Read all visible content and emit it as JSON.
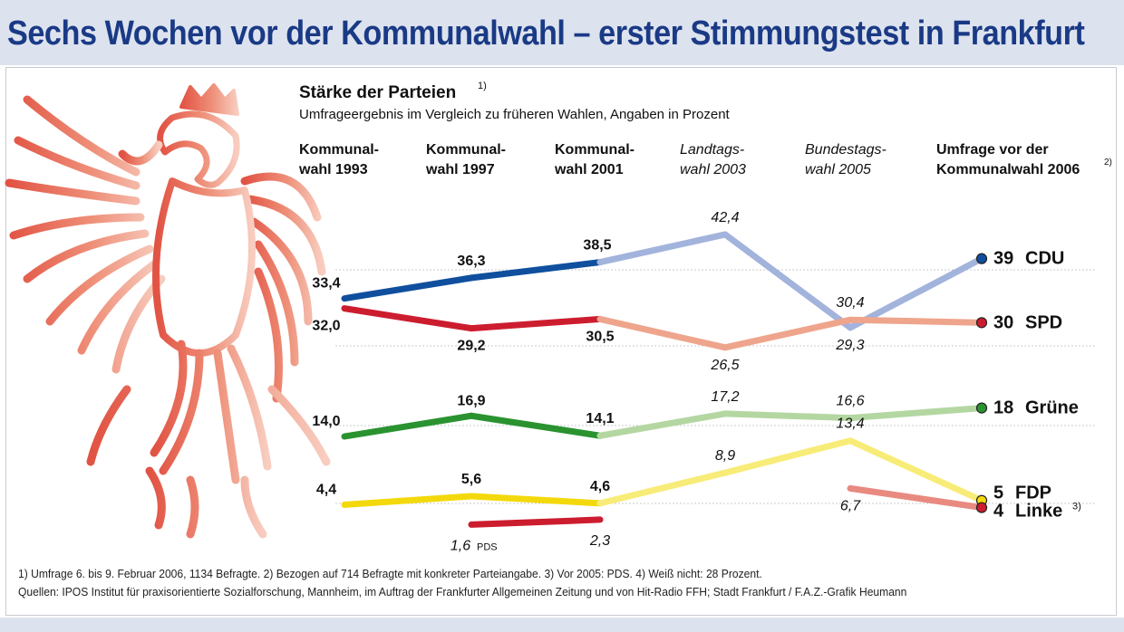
{
  "headline": "Sechs Wochen vor der Kommunalwahl – erster Stimmungstest in Frankfurt",
  "colors": {
    "cdu": "#0f4f9e",
    "cdu_light": "#a2b3dc",
    "spd": "#cc1d2f",
    "spd_light": "#eea58c",
    "gruene": "#2a9330",
    "gruene_light": "#b4d7a2",
    "fdp": "#f3d90c",
    "fdp_light": "#f8ec78",
    "linke_light": "#e88a80",
    "eagle": "#e8735a"
  },
  "chart_data": {
    "type": "line",
    "title": "Stärke der Parteien",
    "title_note": "1)",
    "subtitle": "Umfrageergebnis im Vergleich zu früheren Wahlen, Angaben in Prozent",
    "categories": [
      {
        "line1": "Kommunal-",
        "line2": "wahl 1993",
        "note": "",
        "style": "bold"
      },
      {
        "line1": "Kommunal-",
        "line2": "wahl 1997",
        "note": "",
        "style": "bold"
      },
      {
        "line1": "Kommunal-",
        "line2": "wahl 2001",
        "note": "",
        "style": "bold"
      },
      {
        "line1": "Landtags-",
        "line2": "wahl 2003",
        "note": "",
        "style": "italic"
      },
      {
        "line1": "Bundestags-",
        "line2": "wahl 2005",
        "note": "",
        "style": "italic"
      },
      {
        "line1": "Umfrage vor der",
        "line2": "Kommunalwahl 2006",
        "note": "2)",
        "style": "bold"
      }
    ],
    "series": [
      {
        "key": "cdu",
        "values": [
          33.4,
          36.3,
          38.5,
          42.4,
          29.3,
          39
        ],
        "labels": [
          "33,4",
          "36,3",
          "38,5",
          "42,4",
          "29,3",
          "39"
        ],
        "party": "CDU",
        "party_note": ""
      },
      {
        "key": "spd",
        "values": [
          32.0,
          29.2,
          30.5,
          26.5,
          30.4,
          30
        ],
        "labels": [
          "32,0",
          "29,2",
          "30,5",
          "26,5",
          "30,4",
          "30"
        ],
        "party": "SPD",
        "party_note": ""
      },
      {
        "key": "gruene",
        "values": [
          14.0,
          16.9,
          14.1,
          17.2,
          16.6,
          18
        ],
        "labels": [
          "14,0",
          "16,9",
          "14,1",
          "17,2",
          "16,6",
          "18"
        ],
        "party": "Grüne",
        "party_note": ""
      },
      {
        "key": "fdp",
        "values": [
          4.4,
          5.6,
          4.6,
          8.9,
          13.4,
          5
        ],
        "labels": [
          "4,4",
          "5,6",
          "4,6",
          "8,9",
          "13,4",
          "5"
        ],
        "party": "FDP",
        "party_note": ""
      },
      {
        "key": "linke",
        "values": [
          null,
          1.6,
          2.3,
          null,
          6.7,
          4
        ],
        "labels": [
          null,
          "1,6",
          "2,3",
          null,
          "6,7",
          "4"
        ],
        "party": "Linke",
        "party_note": "3)",
        "low_note": "PDS"
      }
    ],
    "ylim": [
      0,
      45
    ],
    "grid": true
  },
  "footnotes": {
    "line1": "1) Umfrage 6. bis 9. Februar 2006, 1134 Befragte.  2) Bezogen auf 714 Befragte mit konkreter Parteiangabe. 3) Vor 2005: PDS.  4) Weiß nicht: 28 Prozent.",
    "line2": "Quellen: IPOS Institut für praxisorientierte Sozialforschung, Mannheim, im Auftrag der Frankfurter Allgemeinen Zeitung und von Hit-Radio FFH; Stadt Frankfurt / F.A.Z.-Grafik Heumann"
  }
}
